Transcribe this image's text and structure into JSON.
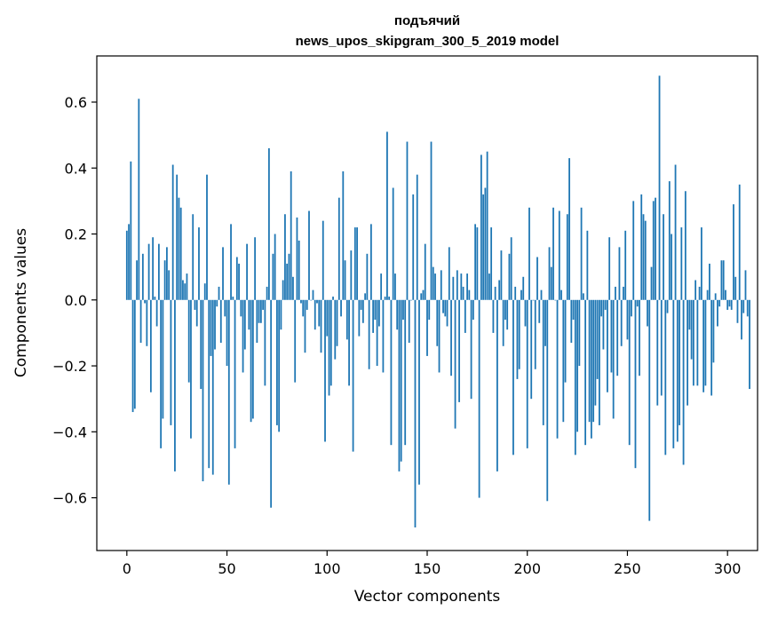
{
  "chart_data": {
    "type": "bar",
    "title_line1": "подъячий",
    "title_line2": "news_upos_skipgram_300_5_2019 model",
    "xlabel": "Vector components",
    "ylabel": "Components values",
    "xlim": [
      -15,
      315
    ],
    "ylim": [
      -0.76,
      0.74
    ],
    "xticks": [
      0,
      50,
      100,
      150,
      200,
      250,
      300
    ],
    "xtick_labels": [
      "0",
      "50",
      "100",
      "150",
      "200",
      "250",
      "300"
    ],
    "yticks": [
      -0.6,
      -0.4,
      -0.2,
      0.0,
      0.2,
      0.4,
      0.6
    ],
    "ytick_labels": [
      "−0.6",
      "−0.4",
      "−0.2",
      "0.0",
      "0.2",
      "0.4",
      "0.6"
    ],
    "bar_color": "#1f77b4",
    "values": [
      0.21,
      0.23,
      0.42,
      -0.34,
      -0.33,
      0.12,
      0.61,
      -0.13,
      0.14,
      -0.01,
      -0.14,
      0.17,
      -0.28,
      0.19,
      0.01,
      -0.08,
      0.17,
      -0.45,
      -0.36,
      0.12,
      0.16,
      0.09,
      -0.38,
      0.41,
      -0.52,
      0.38,
      0.31,
      0.28,
      0.06,
      0.05,
      0.08,
      -0.25,
      -0.42,
      0.26,
      -0.03,
      -0.08,
      0.22,
      -0.27,
      -0.55,
      0.05,
      0.38,
      -0.51,
      -0.17,
      -0.53,
      -0.15,
      -0.02,
      0.04,
      -0.13,
      0.16,
      -0.05,
      -0.2,
      -0.56,
      0.23,
      0.01,
      -0.45,
      0.13,
      0.11,
      -0.05,
      -0.22,
      -0.15,
      0.17,
      -0.09,
      -0.37,
      -0.36,
      0.19,
      -0.13,
      -0.07,
      -0.07,
      -0.03,
      -0.26,
      0.04,
      0.46,
      -0.63,
      0.14,
      0.2,
      -0.38,
      -0.4,
      -0.09,
      0.06,
      0.26,
      0.11,
      0.14,
      0.39,
      0.07,
      -0.25,
      0.25,
      0.18,
      -0.01,
      -0.05,
      -0.16,
      -0.03,
      0.27,
      0.0,
      0.03,
      -0.09,
      -0.01,
      -0.08,
      -0.16,
      0.24,
      -0.43,
      -0.11,
      -0.29,
      -0.26,
      0.01,
      -0.18,
      -0.14,
      0.31,
      -0.05,
      0.39,
      0.12,
      -0.12,
      -0.26,
      0.15,
      -0.46,
      0.22,
      0.22,
      -0.11,
      -0.03,
      -0.07,
      0.02,
      0.14,
      -0.21,
      0.23,
      -0.1,
      -0.06,
      -0.2,
      -0.08,
      0.08,
      -0.22,
      0.01,
      0.51,
      0.01,
      -0.44,
      0.34,
      0.08,
      -0.09,
      -0.52,
      -0.49,
      -0.06,
      -0.44,
      0.48,
      -0.13,
      0.0,
      0.32,
      -0.69,
      0.38,
      -0.56,
      0.02,
      0.03,
      0.17,
      -0.17,
      -0.06,
      0.48,
      0.1,
      0.08,
      -0.14,
      -0.22,
      0.09,
      -0.04,
      -0.05,
      -0.08,
      0.16,
      -0.23,
      0.07,
      -0.39,
      0.09,
      -0.31,
      0.08,
      0.04,
      -0.1,
      0.08,
      0.03,
      -0.3,
      -0.06,
      0.23,
      0.22,
      -0.6,
      0.44,
      0.32,
      0.34,
      0.45,
      0.08,
      0.22,
      -0.1,
      0.04,
      -0.52,
      0.06,
      0.15,
      -0.14,
      -0.06,
      -0.09,
      0.14,
      0.19,
      -0.47,
      0.04,
      -0.24,
      -0.21,
      0.03,
      0.07,
      -0.08,
      -0.45,
      0.28,
      -0.3,
      0.0,
      -0.21,
      0.13,
      -0.07,
      0.03,
      -0.38,
      -0.14,
      -0.61,
      0.16,
      0.1,
      0.28,
      0.0,
      -0.42,
      0.27,
      0.03,
      -0.37,
      -0.25,
      0.26,
      0.43,
      -0.13,
      -0.06,
      -0.47,
      -0.4,
      -0.2,
      0.28,
      0.02,
      -0.44,
      0.21,
      -0.37,
      -0.42,
      -0.37,
      -0.32,
      -0.24,
      -0.38,
      -0.05,
      -0.15,
      -0.03,
      -0.28,
      0.19,
      -0.22,
      -0.36,
      0.04,
      -0.23,
      0.16,
      -0.14,
      0.04,
      0.21,
      -0.12,
      -0.44,
      -0.05,
      0.3,
      -0.51,
      -0.02,
      -0.23,
      0.32,
      0.26,
      0.24,
      -0.08,
      -0.67,
      0.1,
      0.3,
      0.31,
      -0.32,
      0.68,
      -0.29,
      0.26,
      -0.47,
      -0.04,
      0.36,
      0.2,
      -0.45,
      0.41,
      -0.43,
      -0.38,
      0.22,
      -0.5,
      0.33,
      -0.32,
      -0.09,
      -0.18,
      -0.26,
      0.06,
      -0.26,
      0.04,
      0.22,
      -0.28,
      -0.26,
      0.03,
      0.11,
      -0.29,
      -0.19,
      0.02,
      -0.08,
      -0.02,
      0.12,
      0.12,
      0.03,
      -0.03,
      -0.02,
      -0.03,
      0.29,
      0.07,
      -0.07,
      0.35,
      -0.12,
      -0.04,
      0.09,
      -0.05,
      -0.27
    ]
  }
}
